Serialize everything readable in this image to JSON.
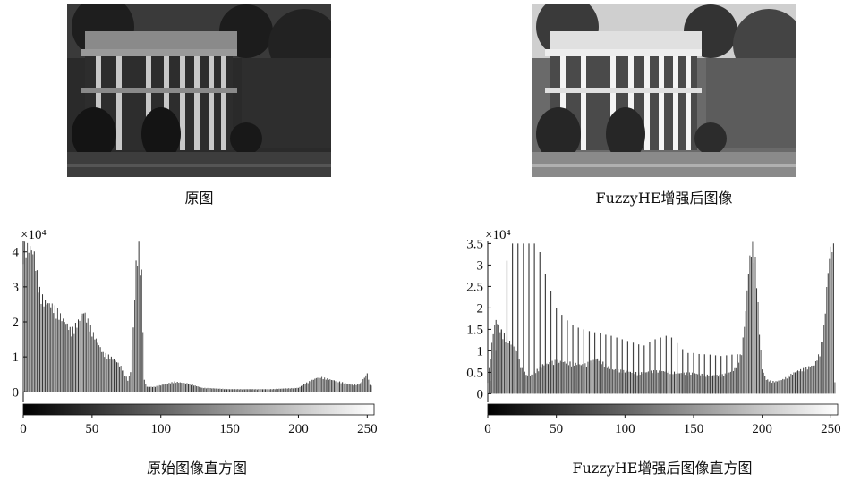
{
  "panels": [
    {
      "caption": "原图",
      "photo": "house-photo-original",
      "photo_brightness": "dark"
    },
    {
      "caption": "FuzzyHE增强后图像",
      "photo": "house-photo-enhanced",
      "photo_brightness": "bright"
    }
  ],
  "chart_data": [
    {
      "type": "bar",
      "title": "原始图像直方图",
      "y_exponent_label": "×10⁴",
      "x_ticks": [
        "0",
        "50",
        "100",
        "150",
        "200",
        "250"
      ],
      "y_ticks": [
        "0",
        "1",
        "2",
        "3",
        "4"
      ],
      "xlim": [
        0,
        255
      ],
      "ylim": [
        -0.3,
        4.3
      ],
      "y_unit_multiplier": 10000,
      "colorbar": "grayscale 0-255",
      "envelope": [
        [
          0,
          4.3
        ],
        [
          5,
          4.3
        ],
        [
          8,
          4.1
        ],
        [
          10,
          3.5
        ],
        [
          12,
          3.0
        ],
        [
          15,
          2.7
        ],
        [
          20,
          2.6
        ],
        [
          25,
          2.4
        ],
        [
          28,
          2.2
        ],
        [
          32,
          2.0
        ],
        [
          35,
          1.8
        ],
        [
          40,
          2.1
        ],
        [
          44,
          2.4
        ],
        [
          46,
          2.2
        ],
        [
          50,
          1.8
        ],
        [
          55,
          1.4
        ],
        [
          58,
          1.15
        ],
        [
          63,
          1.05
        ],
        [
          68,
          0.9
        ],
        [
          72,
          0.7
        ],
        [
          76,
          0.35
        ],
        [
          78,
          0.6
        ],
        [
          80,
          1.9
        ],
        [
          82,
          3.8
        ],
        [
          84,
          4.3
        ],
        [
          86,
          3.5
        ],
        [
          88,
          0.35
        ],
        [
          90,
          0.15
        ],
        [
          95,
          0.15
        ],
        [
          100,
          0.2
        ],
        [
          110,
          0.3
        ],
        [
          120,
          0.25
        ],
        [
          130,
          0.12
        ],
        [
          150,
          0.08
        ],
        [
          180,
          0.08
        ],
        [
          200,
          0.12
        ],
        [
          205,
          0.25
        ],
        [
          210,
          0.35
        ],
        [
          215,
          0.45
        ],
        [
          220,
          0.4
        ],
        [
          230,
          0.3
        ],
        [
          240,
          0.2
        ],
        [
          245,
          0.25
        ],
        [
          250,
          0.55
        ],
        [
          252,
          0.2
        ]
      ]
    },
    {
      "type": "bar",
      "title": "FuzzyHE增强后图像直方图",
      "y_exponent_label": "×10⁴",
      "x_ticks": [
        "0",
        "50",
        "100",
        "150",
        "200",
        "250"
      ],
      "y_ticks": [
        "0",
        "0.5",
        "1",
        "1.5",
        "2",
        "2.5",
        "3",
        "3.5"
      ],
      "xlim": [
        0,
        255
      ],
      "ylim": [
        -0.2,
        3.55
      ],
      "y_unit_multiplier": 10000,
      "colorbar": "grayscale 0-255",
      "tall_comb": [
        [
          2,
          0.3
        ],
        [
          6,
          1.0
        ],
        [
          10,
          1.5
        ],
        [
          14,
          3.1
        ],
        [
          18,
          3.5
        ],
        [
          22,
          3.5
        ],
        [
          26,
          3.5
        ],
        [
          30,
          3.5
        ],
        [
          34,
          3.5
        ],
        [
          38,
          3.3
        ],
        [
          42,
          2.8
        ],
        [
          46,
          2.4
        ],
        [
          50,
          2.0
        ],
        [
          55,
          1.8
        ],
        [
          60,
          1.65
        ],
        [
          65,
          1.55
        ],
        [
          70,
          1.5
        ],
        [
          75,
          1.45
        ],
        [
          80,
          1.42
        ],
        [
          85,
          1.38
        ],
        [
          90,
          1.35
        ],
        [
          95,
          1.3
        ],
        [
          100,
          1.25
        ],
        [
          105,
          1.2
        ],
        [
          110,
          1.15
        ],
        [
          115,
          1.12
        ],
        [
          120,
          1.25
        ],
        [
          125,
          1.3
        ],
        [
          130,
          1.35
        ],
        [
          135,
          1.3
        ],
        [
          140,
          1.1
        ],
        [
          145,
          0.95
        ],
        [
          150,
          0.95
        ],
        [
          155,
          0.92
        ],
        [
          160,
          0.92
        ],
        [
          165,
          0.9
        ],
        [
          170,
          0.88
        ],
        [
          175,
          0.9
        ],
        [
          180,
          0.92
        ]
      ],
      "envelope": [
        [
          0,
          0.3
        ],
        [
          4,
          1.5
        ],
        [
          6,
          1.8
        ],
        [
          10,
          1.5
        ],
        [
          15,
          1.3
        ],
        [
          20,
          1.1
        ],
        [
          25,
          0.6
        ],
        [
          30,
          0.4
        ],
        [
          40,
          0.7
        ],
        [
          50,
          0.8
        ],
        [
          60,
          0.75
        ],
        [
          70,
          0.7
        ],
        [
          80,
          0.85
        ],
        [
          90,
          0.6
        ],
        [
          100,
          0.55
        ],
        [
          110,
          0.5
        ],
        [
          120,
          0.55
        ],
        [
          130,
          0.55
        ],
        [
          140,
          0.5
        ],
        [
          150,
          0.5
        ],
        [
          160,
          0.45
        ],
        [
          170,
          0.45
        ],
        [
          175,
          0.5
        ],
        [
          180,
          0.6
        ],
        [
          185,
          1.0
        ],
        [
          188,
          2.0
        ],
        [
          190,
          3.0
        ],
        [
          192,
          3.55
        ],
        [
          194,
          3.55
        ],
        [
          196,
          2.8
        ],
        [
          198,
          1.5
        ],
        [
          200,
          0.6
        ],
        [
          203,
          0.35
        ],
        [
          207,
          0.3
        ],
        [
          210,
          0.3
        ],
        [
          215,
          0.35
        ],
        [
          220,
          0.45
        ],
        [
          225,
          0.55
        ],
        [
          230,
          0.6
        ],
        [
          238,
          0.7
        ],
        [
          242,
          1.0
        ],
        [
          245,
          1.6
        ],
        [
          248,
          3.0
        ],
        [
          250,
          3.55
        ],
        [
          252,
          3.55
        ],
        [
          253,
          0.3
        ]
      ]
    }
  ]
}
